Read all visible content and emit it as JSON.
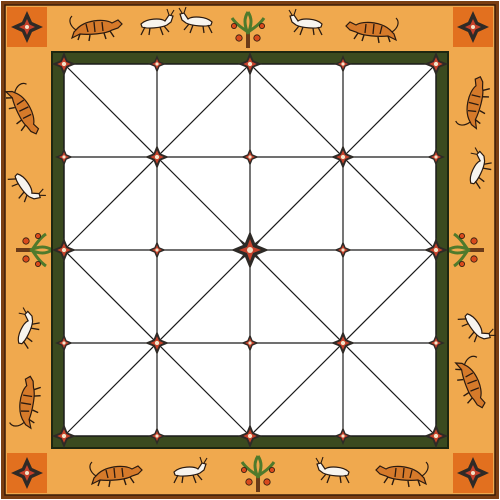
{
  "game": {
    "type": "alquerque-variant board",
    "grid_points_per_side": 5,
    "pieces_on_board": 0
  },
  "colors": {
    "outer_frame": "#7a3e12",
    "border_fill": "#f0a94e",
    "corner_fill": "#e2701f",
    "inner_frame": "#3b4a1f",
    "inner_frame_edge": "#1e2610",
    "playfield": "#ffffff",
    "grid_line": "#1a1a1a",
    "star_dark": "#2e2a26",
    "star_red": "#c7412a",
    "star_light": "#f3e3c8",
    "tree_leaf": "#4f7a2c",
    "tree_trunk": "#6b3b18",
    "fruit": "#d84a1c",
    "animal_tiger": "#d67a2a",
    "animal_white": "#f7f4ee",
    "animal_outline": "#2a1a10"
  },
  "border_motifs": {
    "corners": [
      "corner-ornament-top-left",
      "corner-ornament-top-right",
      "corner-ornament-bottom-left",
      "corner-ornament-bottom-right"
    ],
    "top": [
      "tiger-icon",
      "deer-icon",
      "deer-icon",
      "tree-icon",
      "deer-icon",
      "tiger-icon"
    ],
    "bottom": [
      "tiger-icon",
      "deer-icon",
      "tree-icon",
      "deer-icon",
      "tiger-icon"
    ],
    "left": [
      "tiger-icon",
      "deer-icon",
      "tree-icon",
      "deer-icon",
      "tiger-icon"
    ],
    "right": [
      "tiger-icon",
      "deer-icon",
      "tree-icon",
      "deer-icon",
      "tiger-icon"
    ]
  }
}
